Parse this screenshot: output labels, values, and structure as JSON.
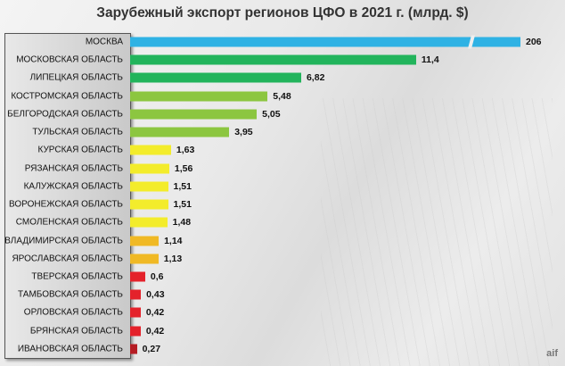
{
  "chart_data": {
    "type": "bar",
    "orientation": "horizontal",
    "title": "Зарубежный экспорт регионов ЦФО в 2021 г. (млрд. $)",
    "categories": [
      "МОСКВА",
      "МОСКОВСКАЯ ОБЛАСТЬ",
      "ЛИПЕЦКАЯ ОБЛАСТЬ",
      "КОСТРОМСКАЯ ОБЛАСТЬ",
      "БЕЛГОРОДСКАЯ ОБЛАСТЬ",
      "ТУЛЬСКАЯ ОБЛАСТЬ",
      "КУРСКАЯ ОБЛАСТЬ",
      "РЯЗАНСКАЯ ОБЛАСТЬ",
      "КАЛУЖСКАЯ ОБЛАСТЬ",
      "ВОРОНЕЖСКАЯ ОБЛАСТЬ",
      "СМОЛЕНСКАЯ ОБЛАСТЬ",
      "ВЛАДИМИРСКАЯ ОБЛАСТЬ",
      "ЯРОСЛАВСКАЯ ОБЛАСТЬ",
      "ТВЕРСКАЯ ОБЛАСТЬ",
      "ТАМБОВСКАЯ ОБЛАСТЬ",
      "ОРЛОВСКАЯ ОБЛАСТЬ",
      "БРЯНСКАЯ ОБЛАСТЬ",
      "ИВАНОВСКАЯ ОБЛАСТЬ"
    ],
    "values": [
      206,
      11.4,
      6.82,
      5.48,
      5.05,
      3.95,
      1.63,
      1.56,
      1.51,
      1.51,
      1.48,
      1.14,
      1.13,
      0.6,
      0.43,
      0.42,
      0.42,
      0.27
    ],
    "labels": [
      "206",
      "11,4",
      "6,82",
      "5,48",
      "5,05",
      "3,95",
      "1,63",
      "1,56",
      "1,51",
      "1,51",
      "1,48",
      "1,14",
      "1,13",
      "0,6",
      "0,43",
      "0,42",
      "0,42",
      "0,27"
    ],
    "colors": [
      "#2fb2e4",
      "#22b45c",
      "#22b45c",
      "#8cc640",
      "#8cc640",
      "#8cc640",
      "#f3ec2b",
      "#f3ec2b",
      "#f3ec2b",
      "#f3ec2b",
      "#f3ec2b",
      "#f0b925",
      "#f0b925",
      "#e4222b",
      "#e4222b",
      "#e4222b",
      "#e4222b",
      "#b51d24"
    ],
    "broken_axis_first_bar": true,
    "grid": false
  },
  "watermark": "аиф"
}
